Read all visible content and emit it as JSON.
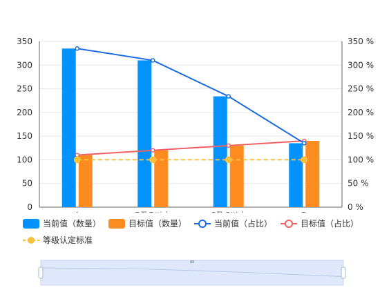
{
  "chart_data": {
    "type": "bar",
    "categories": [
      "A",
      "B及B以上",
      "C及C以上",
      "D"
    ],
    "y_left": {
      "min": 0,
      "max": 350,
      "ticks": [
        0,
        50,
        100,
        150,
        200,
        250,
        300,
        350
      ]
    },
    "y_right": {
      "min": 0,
      "max": 350,
      "ticks": [
        "0 %",
        "50 %",
        "100 %",
        "150 %",
        "200 %",
        "250 %",
        "300 %",
        "350 %"
      ]
    },
    "bar_series": [
      {
        "name": "当前值（数量）",
        "values": [
          335,
          310,
          234,
          135
        ],
        "color": "#0493FE"
      },
      {
        "name": "目标值（数量）",
        "values": [
          110,
          120,
          130,
          140
        ],
        "color": "#FC8C1F"
      }
    ],
    "line_series": [
      {
        "name": "当前值（占比）",
        "values": [
          335,
          310,
          234,
          135
        ],
        "color": "#1A6BE0"
      },
      {
        "name": "目标值（占比）",
        "values": [
          110,
          120,
          130,
          140
        ],
        "color": "#F06262"
      }
    ],
    "standard_line": {
      "name": "等级认定标准",
      "values": [
        100,
        100,
        100,
        100
      ],
      "color": "#F8C13D"
    },
    "grid": true,
    "legend_position": "bottom"
  },
  "colors": {
    "axis": "#666666",
    "grid": "#e6e6e6",
    "zoom_fill": "#dfe8fb",
    "zoom_border": "#c9d6ef"
  }
}
